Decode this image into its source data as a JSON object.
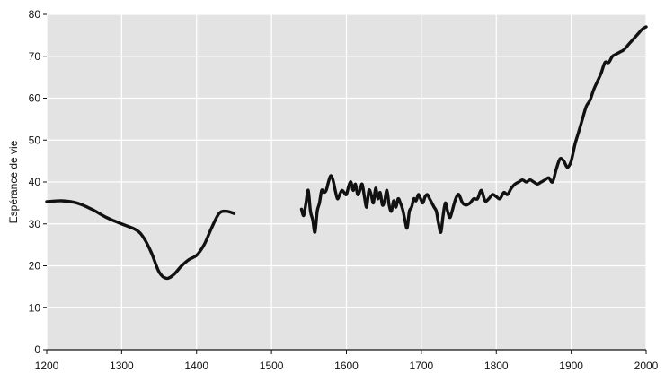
{
  "chart_data": {
    "type": "line",
    "ylabel": "Espérance de vie",
    "xlabel": "",
    "xlim": [
      1200,
      2000
    ],
    "ylim": [
      0,
      80
    ],
    "xticks": [
      1200,
      1300,
      1400,
      1500,
      1600,
      1700,
      1800,
      1900,
      2000
    ],
    "yticks": [
      0,
      10,
      20,
      30,
      40,
      50,
      60,
      70,
      80
    ],
    "grid": true,
    "colors": {
      "plot_bg": "#e3e3e3",
      "grid": "#ffffff",
      "line": "#111111"
    },
    "series": [
      {
        "x": [
          1200,
          1220,
          1240,
          1260,
          1280,
          1300,
          1320,
          1330,
          1340,
          1350,
          1360,
          1370,
          1380,
          1390,
          1400,
          1410,
          1420,
          1430,
          1440,
          1450
        ],
        "y": [
          35.3,
          35.5,
          35.0,
          33.5,
          31.5,
          30.0,
          28.5,
          26.5,
          23.0,
          18.5,
          17.0,
          18.0,
          20.0,
          21.5,
          22.5,
          25.0,
          29.0,
          32.5,
          33.0,
          32.5
        ]
      },
      {
        "x": [
          1540,
          1543,
          1546,
          1549,
          1552,
          1555,
          1558,
          1561,
          1564,
          1567,
          1570,
          1573,
          1576,
          1579,
          1582,
          1585,
          1588,
          1591,
          1594,
          1597,
          1600,
          1603,
          1606,
          1609,
          1612,
          1615,
          1618,
          1621,
          1624,
          1627,
          1630,
          1633,
          1636,
          1639,
          1642,
          1645,
          1648,
          1651,
          1654,
          1657,
          1660,
          1663,
          1666,
          1669,
          1672,
          1675,
          1678,
          1681,
          1684,
          1687,
          1690,
          1693,
          1696,
          1699,
          1702,
          1705,
          1708,
          1711,
          1714,
          1717,
          1720,
          1723,
          1726,
          1729,
          1732,
          1735,
          1738,
          1741,
          1744,
          1747,
          1750,
          1755,
          1760,
          1765,
          1770,
          1775,
          1780,
          1785,
          1790,
          1795,
          1800,
          1805,
          1810,
          1815,
          1820,
          1825,
          1830,
          1835,
          1840,
          1845,
          1850,
          1855,
          1860,
          1865,
          1870,
          1875,
          1880,
          1885,
          1890,
          1895,
          1900,
          1905,
          1910,
          1915,
          1920,
          1925,
          1930,
          1935,
          1940,
          1945,
          1950,
          1955,
          1960,
          1965,
          1970,
          1975,
          1980,
          1985,
          1990,
          1995,
          2000
        ],
        "y": [
          33.5,
          32.0,
          35.0,
          38.0,
          33.0,
          31.0,
          28.0,
          33.0,
          35.0,
          38.0,
          37.5,
          38.0,
          40.0,
          41.5,
          40.5,
          38.0,
          36.0,
          37.0,
          38.0,
          37.5,
          37.0,
          39.0,
          40.0,
          38.0,
          39.5,
          37.0,
          38.0,
          39.5,
          36.5,
          34.0,
          38.0,
          37.0,
          35.0,
          38.5,
          36.0,
          37.5,
          34.5,
          35.5,
          38.0,
          34.5,
          33.0,
          35.5,
          34.0,
          36.0,
          35.0,
          33.5,
          31.0,
          29.0,
          33.0,
          34.0,
          36.0,
          35.5,
          37.0,
          36.0,
          35.0,
          36.5,
          37.0,
          36.0,
          35.0,
          34.0,
          33.0,
          30.0,
          28.0,
          32.0,
          35.0,
          33.0,
          31.5,
          33.0,
          35.0,
          36.5,
          37.0,
          35.0,
          34.5,
          35.0,
          36.0,
          36.0,
          38.0,
          35.5,
          36.0,
          37.0,
          36.5,
          36.0,
          37.5,
          37.0,
          38.5,
          39.5,
          40.0,
          40.5,
          40.0,
          40.5,
          40.0,
          39.5,
          40.0,
          40.5,
          41.0,
          40.0,
          43.0,
          45.5,
          45.0,
          43.5,
          45.0,
          49.0,
          52.0,
          55.0,
          58.0,
          59.5,
          62.0,
          64.0,
          66.0,
          68.5,
          68.5,
          70.0,
          70.5,
          71.0,
          71.5,
          72.5,
          73.5,
          74.5,
          75.5,
          76.5,
          77.0
        ]
      }
    ]
  }
}
